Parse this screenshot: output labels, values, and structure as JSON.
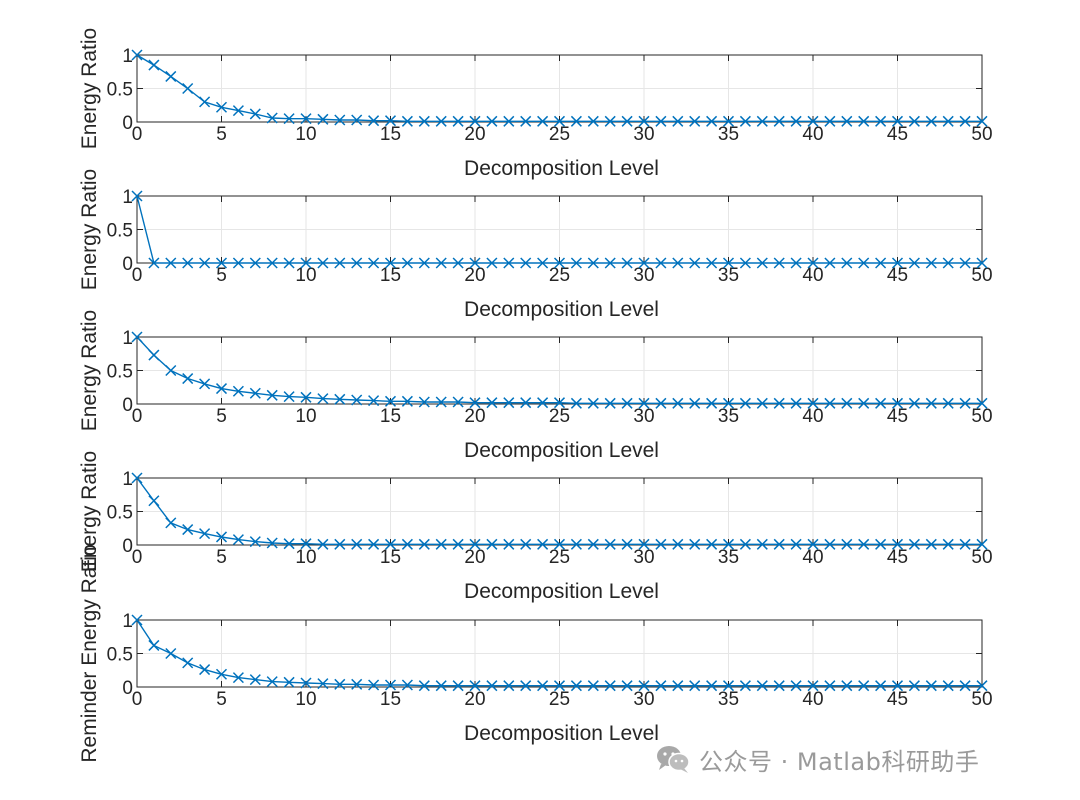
{
  "chart_data": [
    {
      "type": "line",
      "title": "",
      "xlabel": "Decomposition Level",
      "ylabel": "Energy Ratio",
      "xlim": [
        0,
        50
      ],
      "ylim": [
        0,
        1
      ],
      "xticks": [
        0,
        5,
        10,
        15,
        20,
        25,
        30,
        35,
        40,
        45,
        50
      ],
      "yticks": [
        0,
        0.5,
        1
      ],
      "ytick_labels": [
        "0",
        "0.5",
        "1"
      ],
      "grid": true,
      "marker": "x",
      "color": "#0072BD",
      "series": [
        {
          "name": "Energy Ratio",
          "x": [
            0,
            1,
            2,
            3,
            4,
            5,
            6,
            7,
            8,
            9,
            10,
            11,
            12,
            13,
            14,
            15,
            16,
            17,
            18,
            19,
            20,
            21,
            22,
            23,
            24,
            25,
            26,
            27,
            28,
            29,
            30,
            31,
            32,
            33,
            34,
            35,
            36,
            37,
            38,
            39,
            40,
            41,
            42,
            43,
            44,
            45,
            46,
            47,
            48,
            49,
            50
          ],
          "values": [
            1,
            0.85,
            0.68,
            0.5,
            0.3,
            0.22,
            0.17,
            0.12,
            0.06,
            0.05,
            0.05,
            0.04,
            0.03,
            0.03,
            0.02,
            0.02,
            0.01,
            0.01,
            0.01,
            0.01,
            0.01,
            0.01,
            0.01,
            0.01,
            0.01,
            0.01,
            0.01,
            0.01,
            0.01,
            0.01,
            0.01,
            0.01,
            0.01,
            0.01,
            0.01,
            0.01,
            0.01,
            0.01,
            0.01,
            0.01,
            0.01,
            0.01,
            0.01,
            0.01,
            0.01,
            0.01,
            0.01,
            0.01,
            0.01,
            0.01,
            0.01
          ]
        }
      ]
    },
    {
      "type": "line",
      "title": "",
      "xlabel": "Decomposition Level",
      "ylabel": "Energy Ratio",
      "xlim": [
        0,
        50
      ],
      "ylim": [
        0,
        1
      ],
      "xticks": [
        0,
        5,
        10,
        15,
        20,
        25,
        30,
        35,
        40,
        45,
        50
      ],
      "yticks": [
        0,
        0.5,
        1
      ],
      "ytick_labels": [
        "0",
        "0.5",
        "1"
      ],
      "grid": true,
      "marker": "x",
      "color": "#0072BD",
      "series": [
        {
          "name": "Energy Ratio",
          "x": [
            0,
            1,
            2,
            3,
            4,
            5,
            6,
            7,
            8,
            9,
            10,
            11,
            12,
            13,
            14,
            15,
            16,
            17,
            18,
            19,
            20,
            21,
            22,
            23,
            24,
            25,
            26,
            27,
            28,
            29,
            30,
            31,
            32,
            33,
            34,
            35,
            36,
            37,
            38,
            39,
            40,
            41,
            42,
            43,
            44,
            45,
            46,
            47,
            48,
            49,
            50
          ],
          "values": [
            1,
            0,
            0,
            0,
            0,
            0,
            0,
            0,
            0,
            0,
            0,
            0,
            0,
            0,
            0,
            0,
            0,
            0,
            0,
            0,
            0,
            0,
            0,
            0,
            0,
            0,
            0,
            0,
            0,
            0,
            0,
            0,
            0,
            0,
            0,
            0,
            0,
            0,
            0,
            0,
            0,
            0,
            0,
            0,
            0,
            0,
            0,
            0,
            0,
            0,
            0
          ]
        }
      ]
    },
    {
      "type": "line",
      "title": "",
      "xlabel": "Decomposition Level",
      "ylabel": "Energy Ratio",
      "xlim": [
        0,
        50
      ],
      "ylim": [
        0,
        1
      ],
      "xticks": [
        0,
        5,
        10,
        15,
        20,
        25,
        30,
        35,
        40,
        45,
        50
      ],
      "yticks": [
        0,
        0.5,
        1
      ],
      "ytick_labels": [
        "0",
        "0.5",
        "1"
      ],
      "grid": true,
      "marker": "x",
      "color": "#0072BD",
      "series": [
        {
          "name": "Energy Ratio",
          "x": [
            0,
            1,
            2,
            3,
            4,
            5,
            6,
            7,
            8,
            9,
            10,
            11,
            12,
            13,
            14,
            15,
            16,
            17,
            18,
            19,
            20,
            21,
            22,
            23,
            24,
            25,
            26,
            27,
            28,
            29,
            30,
            31,
            32,
            33,
            34,
            35,
            36,
            37,
            38,
            39,
            40,
            41,
            42,
            43,
            44,
            45,
            46,
            47,
            48,
            49,
            50
          ],
          "values": [
            1,
            0.73,
            0.5,
            0.38,
            0.3,
            0.23,
            0.19,
            0.16,
            0.13,
            0.11,
            0.1,
            0.08,
            0.07,
            0.06,
            0.05,
            0.04,
            0.04,
            0.03,
            0.03,
            0.03,
            0.02,
            0.02,
            0.02,
            0.02,
            0.02,
            0.02,
            0.01,
            0.01,
            0.01,
            0.01,
            0.01,
            0.01,
            0.01,
            0.01,
            0.01,
            0.01,
            0.01,
            0.01,
            0.01,
            0.01,
            0.01,
            0.01,
            0.01,
            0.01,
            0.01,
            0.01,
            0.01,
            0.01,
            0.01,
            0.01,
            0.01
          ]
        }
      ]
    },
    {
      "type": "line",
      "title": "",
      "xlabel": "Decomposition Level",
      "ylabel": "Energy Ratio",
      "xlim": [
        0,
        50
      ],
      "ylim": [
        0,
        1
      ],
      "xticks": [
        0,
        5,
        10,
        15,
        20,
        25,
        30,
        35,
        40,
        45,
        50
      ],
      "yticks": [
        0,
        0.5,
        1
      ],
      "ytick_labels": [
        "0",
        "0.5",
        "1"
      ],
      "grid": true,
      "marker": "x",
      "color": "#0072BD",
      "series": [
        {
          "name": "Energy Ratio",
          "x": [
            0,
            1,
            2,
            3,
            4,
            5,
            6,
            7,
            8,
            9,
            10,
            11,
            12,
            13,
            14,
            15,
            16,
            17,
            18,
            19,
            20,
            21,
            22,
            23,
            24,
            25,
            26,
            27,
            28,
            29,
            30,
            31,
            32,
            33,
            34,
            35,
            36,
            37,
            38,
            39,
            40,
            41,
            42,
            43,
            44,
            45,
            46,
            47,
            48,
            49,
            50
          ],
          "values": [
            1,
            0.66,
            0.33,
            0.23,
            0.17,
            0.12,
            0.08,
            0.05,
            0.03,
            0.02,
            0.02,
            0.01,
            0.01,
            0.01,
            0.01,
            0.01,
            0.01,
            0.01,
            0.01,
            0.01,
            0.01,
            0.01,
            0.01,
            0.01,
            0.01,
            0.01,
            0.01,
            0.01,
            0.01,
            0.01,
            0.01,
            0.01,
            0.01,
            0.01,
            0.01,
            0.01,
            0.01,
            0.01,
            0.01,
            0.01,
            0.01,
            0.01,
            0.01,
            0.01,
            0.01,
            0.01,
            0.01,
            0.01,
            0.01,
            0.01,
            0.01
          ]
        }
      ]
    },
    {
      "type": "line",
      "title": "",
      "xlabel": "Decomposition Level",
      "ylabel": "Reminder Energy Ratio",
      "xlim": [
        0,
        50
      ],
      "ylim": [
        0,
        1
      ],
      "xticks": [
        0,
        5,
        10,
        15,
        20,
        25,
        30,
        35,
        40,
        45,
        50
      ],
      "yticks": [
        0,
        0.5,
        1
      ],
      "ytick_labels": [
        "0",
        "0.5",
        "1"
      ],
      "grid": true,
      "marker": "x",
      "color": "#0072BD",
      "series": [
        {
          "name": "Reminder Energy Ratio",
          "x": [
            0,
            1,
            2,
            3,
            4,
            5,
            6,
            7,
            8,
            9,
            10,
            11,
            12,
            13,
            14,
            15,
            16,
            17,
            18,
            19,
            20,
            21,
            22,
            23,
            24,
            25,
            26,
            27,
            28,
            29,
            30,
            31,
            32,
            33,
            34,
            35,
            36,
            37,
            38,
            39,
            40,
            41,
            42,
            43,
            44,
            45,
            46,
            47,
            48,
            49,
            50
          ],
          "values": [
            1,
            0.62,
            0.5,
            0.36,
            0.26,
            0.19,
            0.14,
            0.11,
            0.08,
            0.07,
            0.06,
            0.05,
            0.04,
            0.04,
            0.03,
            0.03,
            0.03,
            0.02,
            0.02,
            0.02,
            0.02,
            0.02,
            0.02,
            0.02,
            0.02,
            0.02,
            0.02,
            0.02,
            0.02,
            0.02,
            0.02,
            0.02,
            0.02,
            0.02,
            0.02,
            0.02,
            0.02,
            0.02,
            0.02,
            0.02,
            0.02,
            0.02,
            0.02,
            0.02,
            0.02,
            0.02,
            0.02,
            0.02,
            0.02,
            0.02,
            0.02
          ]
        }
      ]
    }
  ],
  "watermark": {
    "text": "公众号 · Matlab科研助手",
    "icon": "wechat-icon",
    "color": "#9a9a9a"
  }
}
